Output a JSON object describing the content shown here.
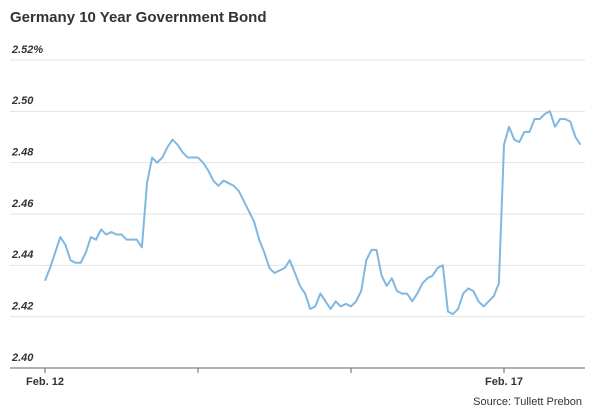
{
  "chart_data": {
    "type": "line",
    "title": "Germany 10 Year Government Bond",
    "source": "Source: Tullett Prebon",
    "categories": [
      "Feb. 12",
      null,
      null,
      null,
      null,
      null,
      null,
      null,
      null,
      null,
      null,
      null,
      null,
      null,
      null,
      null,
      null,
      null,
      null,
      null,
      null,
      null,
      null,
      null,
      null,
      null,
      null,
      null,
      null,
      null,
      null,
      null,
      null,
      null,
      null,
      null,
      null,
      null,
      null,
      null,
      null,
      null,
      null,
      null,
      null,
      null,
      null,
      null,
      null,
      null,
      null,
      null,
      null,
      null,
      null,
      null,
      null,
      null,
      null,
      null,
      null,
      null,
      null,
      null,
      null,
      null,
      null,
      null,
      null,
      null,
      null,
      null,
      null,
      null,
      null,
      null,
      null,
      null,
      null,
      null,
      null,
      null,
      null,
      null,
      null,
      null,
      null,
      null,
      null,
      null,
      "Feb. 17",
      null,
      null,
      null,
      null,
      null,
      null,
      null,
      null,
      null,
      null,
      null,
      null,
      null,
      null,
      null
    ],
    "series": [
      {
        "color": "#7fb8e0",
        "values": [
          2.434,
          2.439,
          2.445,
          2.451,
          2.448,
          2.442,
          2.441,
          2.441,
          2.445,
          2.451,
          2.45,
          2.454,
          2.452,
          2.453,
          2.452,
          2.452,
          2.45,
          2.45,
          2.45,
          2.447,
          2.472,
          2.482,
          2.48,
          2.482,
          2.486,
          2.489,
          2.487,
          2.484,
          2.482,
          2.482,
          2.482,
          2.48,
          2.477,
          2.473,
          2.471,
          2.473,
          2.472,
          2.471,
          2.469,
          2.465,
          2.461,
          2.457,
          2.45,
          2.445,
          2.439,
          2.437,
          2.438,
          2.439,
          2.442,
          2.437,
          2.432,
          2.429,
          2.423,
          2.424,
          2.429,
          2.426,
          2.423,
          2.426,
          2.424,
          2.425,
          2.424,
          2.426,
          2.43,
          2.442,
          2.446,
          2.446,
          2.436,
          2.432,
          2.435,
          2.43,
          2.429,
          2.429,
          2.426,
          2.429,
          2.433,
          2.435,
          2.436,
          2.439,
          2.44,
          2.422,
          2.421,
          2.423,
          2.429,
          2.431,
          2.43,
          2.426,
          2.424,
          2.426,
          2.428,
          2.433,
          2.487,
          2.494,
          2.489,
          2.488,
          2.492,
          2.492,
          2.497,
          2.497,
          2.499,
          2.5,
          2.494,
          2.497,
          2.497,
          2.496,
          2.49,
          2.487
        ]
      }
    ],
    "ylim": [
      2.4,
      2.52
    ],
    "yticks": [
      {
        "value": 2.4,
        "label": "2.40"
      },
      2.42,
      2.44,
      2.46,
      2.48,
      {
        "value": 2.5,
        "label": "2.50"
      },
      {
        "value": 2.52,
        "label": "2.52%"
      }
    ],
    "grid": true
  }
}
